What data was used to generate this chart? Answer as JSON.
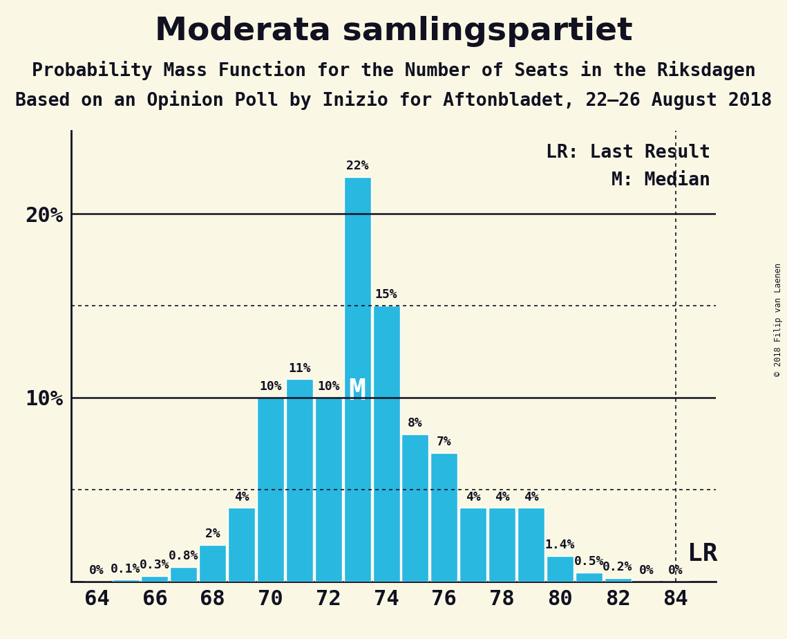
{
  "title": "Moderata samlingspartiet",
  "subtitle1": "Probability Mass Function for the Number of Seats in the Riksdagen",
  "subtitle2": "Based on an Opinion Poll by Inizio for Aftonbladet, 22–26 August 2018",
  "copyright": "© 2018 Filip van Laenen",
  "seats": [
    64,
    65,
    66,
    67,
    68,
    69,
    70,
    71,
    72,
    73,
    74,
    75,
    76,
    77,
    78,
    79,
    80,
    81,
    82,
    83,
    84
  ],
  "probabilities": [
    0.0,
    0.1,
    0.3,
    0.8,
    2.0,
    4.0,
    10.0,
    11.0,
    10.0,
    22.0,
    15.0,
    8.0,
    7.0,
    4.0,
    4.0,
    4.0,
    1.4,
    0.5,
    0.2,
    0.0,
    0.0
  ],
  "prob_labels": [
    "0%",
    "0.1%",
    "0.3%",
    "0.8%",
    "2%",
    "4%",
    "10%",
    "11%",
    "10%",
    "22%",
    "15%",
    "8%",
    "7%",
    "4%",
    "4%",
    "4%",
    "1.4%",
    "0.5%",
    "0.2%",
    "0%",
    "0%"
  ],
  "bar_color": "#29b8df",
  "bar_edge_color": "#ffffff",
  "background_color": "#faf8e4",
  "text_color": "#111122",
  "median_seat": 73,
  "lr_seat": 84,
  "dotted_line_y": [
    5.0,
    15.0
  ],
  "solid_line_y": [
    10.0,
    20.0
  ],
  "ylim": [
    0,
    24.5
  ],
  "xlim": [
    63.1,
    85.4
  ],
  "xlabel_seats": [
    64,
    66,
    68,
    70,
    72,
    74,
    76,
    78,
    80,
    82,
    84
  ],
  "title_fontsize": 34,
  "subtitle_fontsize": 19,
  "bar_label_fontsize": 13,
  "ytick_fontsize": 22,
  "xtick_fontsize": 22,
  "legend_fontsize": 19,
  "median_fontsize": 30,
  "lr_fontsize": 26
}
